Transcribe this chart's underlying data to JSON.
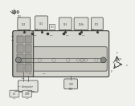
{
  "fig_bg": "#f0f0ec",
  "dgray": "#3a3a3a",
  "mgray": "#888888",
  "lgray": "#bbbbbb",
  "body_color": "#d8d8d2",
  "belt_color": "#c8c8c0",
  "module_color": "#ddddd8",
  "left_dark": "#b8b8b0",
  "comp_color": "#e2e2de"
}
